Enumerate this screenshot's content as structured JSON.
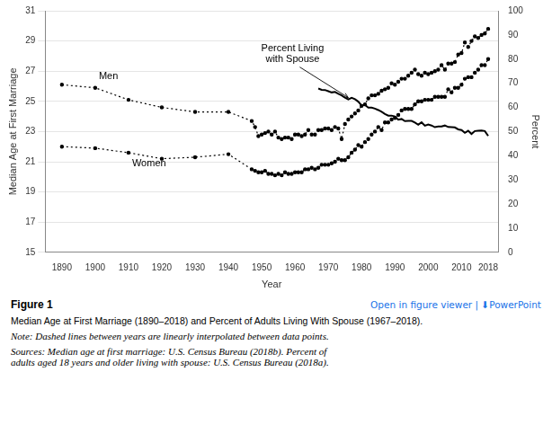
{
  "chart_data": {
    "type": "line",
    "xlabel": "Year",
    "ylabel": "Median Age at First Marriage",
    "y2label": "Percent",
    "xlim": [
      1885,
      2021
    ],
    "xticks": [
      1890,
      1900,
      1910,
      1920,
      1930,
      1940,
      1950,
      1960,
      1970,
      1980,
      1990,
      2000,
      2010,
      2018
    ],
    "ylim": [
      15,
      31
    ],
    "yticks": [
      15,
      17,
      19,
      21,
      23,
      25,
      27,
      29,
      31
    ],
    "y2lim": [
      0,
      100
    ],
    "y2ticks": [
      0,
      10,
      20,
      30,
      40,
      50,
      60,
      70,
      80,
      90,
      100
    ],
    "grid": "y",
    "series": [
      {
        "name": "Men",
        "color": "#000000",
        "line_style": "dotted",
        "marker": "circle",
        "x": [
          1890,
          1900,
          1910,
          1920,
          1930,
          1940,
          1947,
          1948,
          1949,
          1950,
          1951,
          1952,
          1953,
          1954,
          1955,
          1956,
          1957,
          1958,
          1959,
          1960,
          1961,
          1962,
          1963,
          1964,
          1965,
          1966,
          1967,
          1968,
          1969,
          1970,
          1971,
          1972,
          1973,
          1974,
          1975,
          1976,
          1977,
          1978,
          1979,
          1980,
          1981,
          1982,
          1983,
          1984,
          1985,
          1986,
          1987,
          1988,
          1989,
          1990,
          1991,
          1992,
          1993,
          1994,
          1995,
          1996,
          1997,
          1998,
          1999,
          2000,
          2001,
          2002,
          2003,
          2004,
          2005,
          2006,
          2007,
          2008,
          2009,
          2010,
          2011,
          2012,
          2013,
          2014,
          2015,
          2016,
          2017,
          2018
        ],
        "values": [
          26.1,
          25.9,
          25.1,
          24.6,
          24.3,
          24.3,
          23.7,
          23.3,
          22.7,
          22.8,
          22.9,
          23.0,
          22.8,
          23.0,
          22.6,
          22.5,
          22.6,
          22.6,
          22.5,
          22.8,
          22.8,
          22.7,
          22.8,
          23.1,
          22.8,
          22.8,
          23.1,
          23.1,
          23.2,
          23.2,
          23.1,
          23.3,
          23.2,
          22.5,
          23.5,
          23.8,
          24.0,
          24.2,
          24.4,
          24.7,
          24.8,
          25.2,
          25.4,
          25.4,
          25.5,
          25.7,
          25.8,
          25.9,
          26.2,
          26.1,
          26.3,
          26.5,
          26.5,
          26.7,
          26.9,
          27.1,
          26.8,
          26.7,
          26.9,
          26.8,
          26.9,
          27.0,
          27.1,
          27.4,
          27.1,
          27.5,
          27.5,
          27.6,
          28.1,
          28.2,
          28.9,
          28.6,
          29.0,
          29.3,
          29.2,
          29.4,
          29.5,
          29.8
        ]
      },
      {
        "name": "Women",
        "color": "#000000",
        "line_style": "dotted",
        "marker": "circle",
        "x": [
          1890,
          1900,
          1910,
          1920,
          1930,
          1940,
          1947,
          1948,
          1949,
          1950,
          1951,
          1952,
          1953,
          1954,
          1955,
          1956,
          1957,
          1958,
          1959,
          1960,
          1961,
          1962,
          1963,
          1964,
          1965,
          1966,
          1967,
          1968,
          1969,
          1970,
          1971,
          1972,
          1973,
          1974,
          1975,
          1976,
          1977,
          1978,
          1979,
          1980,
          1981,
          1982,
          1983,
          1984,
          1985,
          1986,
          1987,
          1988,
          1989,
          1990,
          1991,
          1992,
          1993,
          1994,
          1995,
          1996,
          1997,
          1998,
          1999,
          2000,
          2001,
          2002,
          2003,
          2004,
          2005,
          2006,
          2007,
          2008,
          2009,
          2010,
          2011,
          2012,
          2013,
          2014,
          2015,
          2016,
          2017,
          2018
        ],
        "values": [
          22.0,
          21.9,
          21.6,
          21.2,
          21.3,
          21.5,
          20.5,
          20.4,
          20.3,
          20.3,
          20.4,
          20.2,
          20.2,
          20.1,
          20.2,
          20.1,
          20.3,
          20.2,
          20.2,
          20.3,
          20.3,
          20.3,
          20.5,
          20.5,
          20.6,
          20.5,
          20.6,
          20.8,
          20.8,
          20.8,
          20.9,
          21.0,
          21.2,
          21.1,
          21.1,
          21.3,
          21.6,
          21.8,
          22.1,
          22.0,
          22.3,
          22.5,
          22.8,
          23.0,
          23.3,
          23.1,
          23.6,
          23.6,
          23.8,
          23.9,
          24.1,
          24.4,
          24.5,
          24.5,
          24.5,
          24.8,
          25.0,
          25.0,
          25.1,
          25.1,
          25.1,
          25.3,
          25.3,
          25.3,
          25.3,
          25.8,
          25.6,
          25.9,
          25.9,
          26.1,
          26.5,
          26.6,
          26.6,
          26.9,
          27.1,
          27.4,
          27.4,
          27.8
        ]
      },
      {
        "name": "Percent Living\nwith Spouse",
        "color": "#000000",
        "line_style": "solid",
        "marker": "none",
        "axis": "y2",
        "x": [
          1967,
          1968,
          1969,
          1970,
          1971,
          1972,
          1973,
          1974,
          1975,
          1976,
          1977,
          1978,
          1979,
          1980,
          1981,
          1982,
          1983,
          1984,
          1985,
          1986,
          1987,
          1988,
          1989,
          1990,
          1991,
          1992,
          1993,
          1994,
          1995,
          1996,
          1997,
          1998,
          1999,
          2000,
          2001,
          2002,
          2003,
          2004,
          2005,
          2006,
          2007,
          2008,
          2009,
          2010,
          2011,
          2012,
          2013,
          2014,
          2015,
          2016,
          2017,
          2018
        ],
        "values": [
          67.8,
          67.3,
          67.2,
          66.7,
          66.2,
          66.4,
          65.6,
          65.0,
          64.0,
          63.3,
          64.0,
          63.4,
          62.4,
          60.8,
          61.0,
          59.9,
          59.9,
          59.5,
          58.9,
          58.2,
          57.3,
          56.6,
          56.6,
          56.2,
          54.9,
          55.2,
          54.3,
          54.4,
          54.4,
          53.7,
          52.8,
          53.8,
          52.4,
          52.9,
          52.5,
          51.8,
          52.1,
          52.1,
          52.5,
          51.9,
          51.8,
          51.7,
          50.9,
          50.6,
          49.5,
          50.3,
          49.0,
          50.2,
          50.3,
          50.4,
          50.2,
          48.2
        ]
      }
    ],
    "legend": false,
    "figure_label": "Figure 1",
    "link_text": "Open in figure viewer  |  ⬇PowerPoint",
    "caption": "Median Age at First Marriage (1890–2018) and Percent of Adults Living With Spouse (1967–2018).",
    "note": "Note: Dashed lines between years are linearly interpolated between data points.",
    "sources": "Sources: Median age at first marriage: U.S. Census Bureau (2018b). Percent of\nadults aged 18 years and older living with spouse: U.S. Census Bureau (2018a)."
  }
}
